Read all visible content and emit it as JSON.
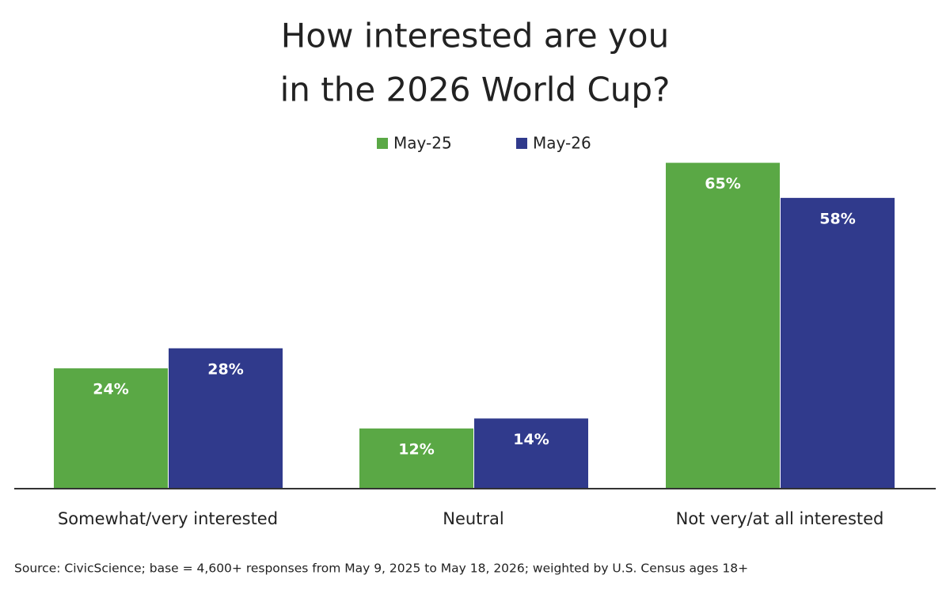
{
  "chart_data": {
    "type": "bar",
    "title": [
      "How interested are you",
      "in the 2026 World Cup?"
    ],
    "categories": [
      "Somewhat/very interested",
      "Neutral",
      "Not very/at all interested"
    ],
    "series": [
      {
        "name": "May-25",
        "color": "#5aa845",
        "values": [
          24,
          12,
          65
        ],
        "value_labels": [
          "24%",
          "12%",
          "65%"
        ]
      },
      {
        "name": "May-26",
        "color": "#303a8c",
        "values": [
          28,
          14,
          58
        ],
        "value_labels": [
          "28%",
          "14%",
          "58%"
        ]
      }
    ],
    "source": "Source: CivicScience; base = 4,600+ responses from May 9, 2025 to May 18, 2026; weighted by U.S. Census ages 18+"
  }
}
